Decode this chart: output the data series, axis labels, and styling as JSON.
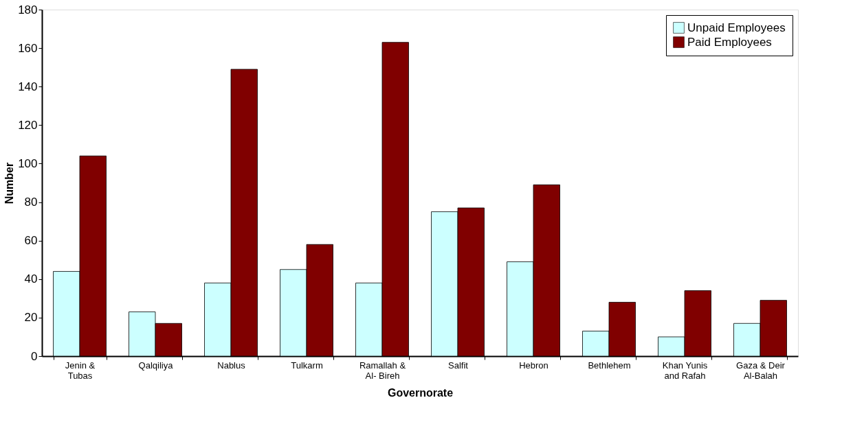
{
  "chart_data": {
    "type": "bar",
    "xlabel": "Governorate",
    "ylabel": "Number",
    "categories": [
      "Jenin & Tubas",
      "Qalqiliya",
      "Nablus",
      "Tulkarm",
      "Ramallah & Al- Bireh",
      "Salfit",
      "Hebron",
      "Bethlehem",
      "Khan Yunis and Rafah",
      "Gaza & Deir Al-Balah"
    ],
    "series": [
      {
        "name": "Unpaid Employees",
        "color": "#ccffff",
        "values": [
          44,
          23,
          38,
          45,
          38,
          75,
          49,
          13,
          10,
          17
        ]
      },
      {
        "name": "Paid Employees",
        "color": "#800000",
        "values": [
          104,
          17,
          149,
          58,
          163,
          77,
          89,
          28,
          34,
          29
        ]
      }
    ],
    "ylim": [
      0,
      180
    ],
    "yticks": [
      0,
      20,
      40,
      60,
      80,
      100,
      120,
      140,
      160,
      180
    ],
    "grid": false,
    "legend": "top right"
  }
}
